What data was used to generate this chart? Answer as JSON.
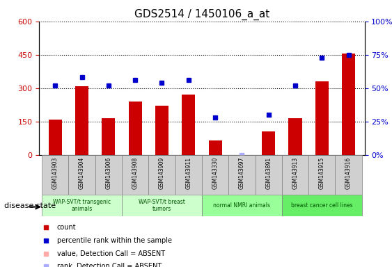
{
  "title": "GDS2514 / 1450106_a_at",
  "samples": [
    "GSM143903",
    "GSM143904",
    "GSM143906",
    "GSM143908",
    "GSM143909",
    "GSM143911",
    "GSM143330",
    "GSM143697",
    "GSM143891",
    "GSM143913",
    "GSM143915",
    "GSM143916"
  ],
  "bar_values": [
    160,
    310,
    165,
    240,
    220,
    270,
    65,
    0,
    105,
    165,
    330,
    455
  ],
  "bar_absent": [
    false,
    false,
    false,
    false,
    false,
    false,
    false,
    true,
    false,
    false,
    false,
    false
  ],
  "percentile_values": [
    52,
    58,
    52,
    56,
    54,
    56,
    28,
    0,
    30,
    52,
    73,
    75
  ],
  "percentile_absent": [
    false,
    false,
    false,
    false,
    false,
    false,
    false,
    true,
    false,
    false,
    false,
    false
  ],
  "bar_color_normal": "#cc0000",
  "bar_color_absent": "#ffaaaa",
  "dot_color_normal": "#0000cc",
  "dot_color_absent": "#aaaaff",
  "ylim_left": [
    0,
    600
  ],
  "ylim_right": [
    0,
    100
  ],
  "yticks_left": [
    0,
    150,
    300,
    450,
    600
  ],
  "ytick_labels_right": [
    "0%",
    "25%",
    "50%",
    "75%",
    "100%"
  ],
  "yticks_right": [
    0,
    25,
    50,
    75,
    100
  ],
  "groups": [
    {
      "label": "WAP-SVT/t transgenic\nanimals",
      "start": 0,
      "end": 3,
      "color": "#ccffcc"
    },
    {
      "label": "WAP-SVT/t breast\ntumors",
      "start": 3,
      "end": 6,
      "color": "#ccffcc"
    },
    {
      "label": "normal NMRI animals",
      "start": 6,
      "end": 9,
      "color": "#99ff99"
    },
    {
      "label": "breast cancer cell lines",
      "start": 9,
      "end": 12,
      "color": "#66ee66"
    }
  ],
  "disease_state_label": "disease state",
  "legend_items": [
    {
      "label": "count",
      "color": "#cc0000"
    },
    {
      "label": "percentile rank within the sample",
      "color": "#0000cc"
    },
    {
      "label": "value, Detection Call = ABSENT",
      "color": "#ffaaaa"
    },
    {
      "label": "rank, Detection Call = ABSENT",
      "color": "#aaaaff"
    }
  ]
}
